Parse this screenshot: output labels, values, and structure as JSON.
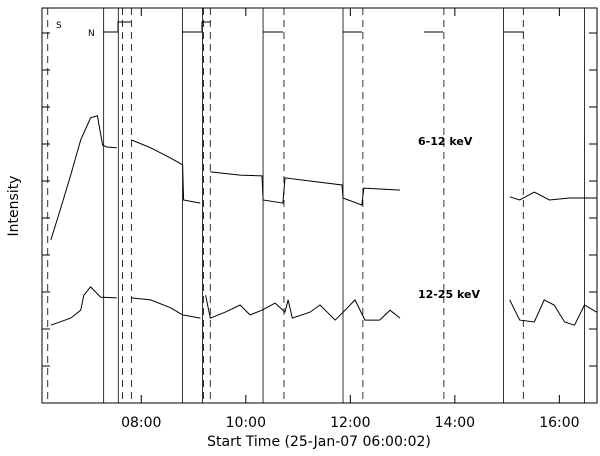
{
  "chart_data": {
    "type": "line",
    "xlabel": "Start Time (25-Jan-07 06:00:02)",
    "ylabel": "Intensity",
    "xlim": [
      6.1,
      16.72
    ],
    "ylim": [
      0,
      100
    ],
    "xticks": [
      {
        "value": 8,
        "label": "08:00"
      },
      {
        "value": 10,
        "label": "10:00"
      },
      {
        "value": 12,
        "label": "12:00"
      },
      {
        "value": 14,
        "label": "14:00"
      },
      {
        "value": 16,
        "label": "16:00"
      }
    ],
    "annotations": [
      "S",
      "N"
    ],
    "solid_lines": [
      7.28,
      7.56,
      8.79,
      9.17,
      10.33,
      11.86,
      14.93,
      16.48
    ],
    "dashed_lines": [
      6.21,
      7.64,
      7.81,
      9.19,
      9.32,
      10.73,
      12.24,
      13.79,
      15.31
    ],
    "series": [
      {
        "name": "6-12 keV",
        "color": "#000000",
        "x": [
          6.27,
          6.46,
          6.65,
          6.84,
          7.03,
          7.16,
          7.26,
          7.34,
          7.53,
          7.65,
          7.81,
          8.18,
          8.56,
          8.79,
          8.81,
          9.13,
          9.2,
          9.32,
          9.89,
          10.31,
          10.33,
          10.71,
          10.75,
          11.42,
          11.84,
          11.86,
          12.22,
          12.26,
          12.95,
          14,
          15.05,
          15.24,
          15.52,
          15.81,
          16.19,
          16.71
        ],
        "values": [
          41.3,
          49.4,
          57.7,
          66.6,
          72.2,
          72.7,
          65.3,
          64.8,
          64.6,
          null,
          66.6,
          64.6,
          62.0,
          60.3,
          51.4,
          50.6,
          null,
          58.5,
          57.7,
          57.5,
          51.4,
          50.6,
          57.0,
          55.9,
          55.2,
          51.9,
          50.1,
          54.4,
          53.9,
          null,
          52.2,
          51.4,
          53.4,
          51.4,
          51.9,
          51.9
        ]
      },
      {
        "name": "12-25 keV",
        "color": "#000000",
        "x": [
          6.27,
          6.65,
          6.84,
          6.9,
          7.03,
          7.22,
          7.53,
          7.65,
          7.81,
          8.18,
          8.56,
          8.79,
          9.13,
          9.18,
          9.23,
          9.32,
          9.61,
          9.89,
          10.08,
          10.31,
          10.56,
          10.75,
          10.81,
          10.89,
          11.23,
          11.42,
          11.71,
          11.9,
          12.09,
          12.28,
          12.56,
          12.76,
          12.95,
          14,
          15.05,
          15.24,
          15.52,
          15.71,
          15.9,
          16.1,
          16.29,
          16.48,
          16.71
        ],
        "values": [
          19.7,
          21.5,
          23.5,
          27.3,
          29.4,
          26.8,
          26.6,
          null,
          26.6,
          26.1,
          24.1,
          22.3,
          21.5,
          null,
          27.3,
          21.5,
          23.0,
          24.8,
          22.3,
          23.5,
          25.3,
          23.0,
          26.1,
          21.5,
          23.0,
          24.8,
          21.0,
          23.5,
          26.1,
          21.0,
          21.0,
          23.5,
          21.5,
          null,
          26.1,
          21.0,
          20.5,
          26.1,
          24.8,
          20.5,
          19.7,
          24.8,
          23.0
        ]
      }
    ]
  }
}
